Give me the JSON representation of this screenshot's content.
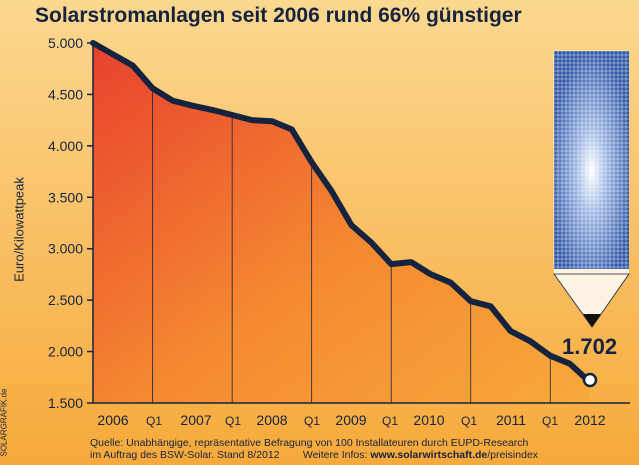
{
  "title": "Solarstromanlagen seit 2006 rund 66% günstiger",
  "ylabel": "Euro/Kilowattpeak",
  "credit": "SOLARGRAFIK.de",
  "source_line1": "Quelle: Unabhängige, repräsentative Befragung von 100 Installateuren durch EUPD-Research",
  "source_line2_a": "im Auftrag des BSW-Solar. Stand 8/2012",
  "source_line2_b": "Weitere Infos:",
  "source_line2_url": "www.solarwirtschaft.de",
  "source_line2_path": "/preisindex",
  "callout": "1.702",
  "colors": {
    "text": "#15233f",
    "line": "#15233f",
    "fill_top": "#e8412d",
    "fill_bottom": "#f7a93a",
    "background": "#f7a93a"
  },
  "chart_data": {
    "type": "area",
    "ylim": [
      1500,
      5000
    ],
    "yticks": [
      "1.500",
      "2.000",
      "2.500",
      "3.000",
      "3.500",
      "4.000",
      "4.500",
      "5.000"
    ],
    "ytick_values": [
      1500,
      2000,
      2500,
      3000,
      3500,
      4000,
      4500,
      5000
    ],
    "xticks": [
      "2006",
      "Q1",
      "2007",
      "Q1",
      "2008",
      "Q1",
      "2009",
      "Q1",
      "2010",
      "Q1",
      "2011",
      "Q1",
      "2012"
    ],
    "series": [
      {
        "values": [
          5000,
          4890,
          4780,
          4560,
          4440,
          4390,
          4350,
          4300,
          4250,
          4240,
          4160,
          3840,
          3560,
          3230,
          3060,
          2850,
          2870,
          2750,
          2670,
          2490,
          2440,
          2200,
          2100,
          1960,
          1880,
          1702
        ]
      }
    ]
  }
}
